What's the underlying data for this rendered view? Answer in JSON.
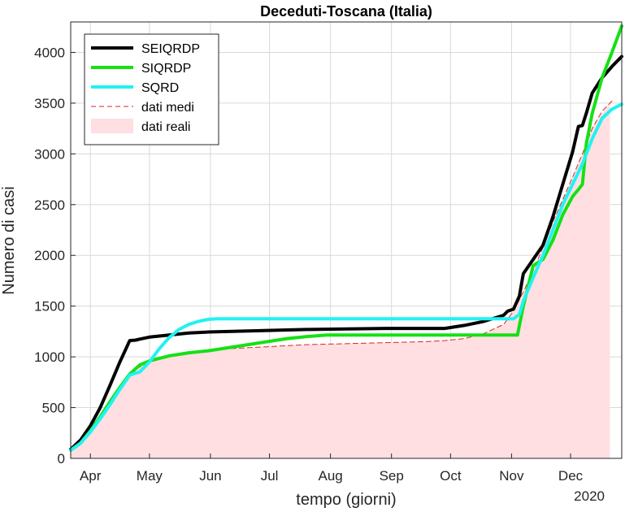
{
  "chart_data": {
    "type": "line",
    "title": "Deceduti-Toscana (Italia)",
    "xlabel": "tempo (giorni)",
    "ylabel": "Numero di casi",
    "year_label": "2020",
    "x_day_range": [
      0,
      280
    ],
    "ylim": [
      0,
      4300
    ],
    "yticks": [
      0,
      500,
      1000,
      1500,
      2000,
      2500,
      3000,
      3500,
      4000
    ],
    "xticks": [
      {
        "day": 10,
        "label": "Apr"
      },
      {
        "day": 40,
        "label": "May"
      },
      {
        "day": 71,
        "label": "Jun"
      },
      {
        "day": 101,
        "label": "Jul"
      },
      {
        "day": 132,
        "label": "Aug"
      },
      {
        "day": 163,
        "label": "Sep"
      },
      {
        "day": 193,
        "label": "Oct"
      },
      {
        "day": 224,
        "label": "Nov"
      },
      {
        "day": 254,
        "label": "Dec"
      }
    ],
    "grid": true,
    "legend_position": "top-left",
    "series": [
      {
        "name": "SEIQRDP",
        "color": "#000000",
        "style": "solid",
        "x": [
          0,
          5,
          10,
          15,
          20,
          25,
          30,
          33,
          35,
          40,
          50,
          60,
          70,
          80,
          100,
          120,
          140,
          160,
          190,
          200,
          210,
          220,
          222,
          225,
          228,
          230,
          235,
          240,
          245,
          250,
          255,
          258,
          260,
          262,
          265,
          270,
          275,
          280
        ],
        "y": [
          90,
          180,
          320,
          500,
          720,
          950,
          1160,
          1165,
          1175,
          1195,
          1215,
          1235,
          1245,
          1250,
          1260,
          1270,
          1275,
          1280,
          1280,
          1310,
          1350,
          1410,
          1450,
          1470,
          1600,
          1820,
          1960,
          2100,
          2380,
          2700,
          3020,
          3270,
          3280,
          3400,
          3600,
          3750,
          3860,
          3960
        ]
      },
      {
        "name": "SIQRDP",
        "color": "#16e016",
        "style": "solid",
        "x": [
          0,
          5,
          10,
          15,
          20,
          25,
          30,
          35,
          40,
          50,
          60,
          70,
          80,
          90,
          100,
          110,
          120,
          130,
          140,
          160,
          180,
          200,
          220,
          227,
          230,
          235,
          240,
          245,
          250,
          255,
          258,
          260,
          262,
          265,
          270,
          275,
          280
        ],
        "y": [
          80,
          150,
          270,
          410,
          560,
          700,
          830,
          920,
          960,
          1010,
          1040,
          1060,
          1090,
          1120,
          1150,
          1180,
          1200,
          1215,
          1215,
          1215,
          1215,
          1215,
          1215,
          1215,
          1500,
          1900,
          1960,
          2150,
          2400,
          2580,
          2650,
          2700,
          3100,
          3400,
          3750,
          4000,
          4260
        ]
      },
      {
        "name": "SQRD",
        "color": "#21f2f2",
        "style": "solid",
        "x": [
          0,
          5,
          10,
          15,
          20,
          25,
          30,
          33,
          35,
          40,
          45,
          50,
          55,
          60,
          65,
          70,
          75,
          80,
          100,
          120,
          140,
          160,
          180,
          200,
          220,
          225,
          228,
          230,
          235,
          240,
          245,
          250,
          255,
          260,
          265,
          270,
          275,
          280
        ],
        "y": [
          80,
          150,
          260,
          390,
          530,
          680,
          820,
          840,
          850,
          950,
          1080,
          1190,
          1270,
          1320,
          1350,
          1370,
          1375,
          1375,
          1375,
          1375,
          1375,
          1375,
          1375,
          1375,
          1375,
          1375,
          1420,
          1550,
          1780,
          2000,
          2250,
          2500,
          2700,
          2900,
          3150,
          3350,
          3440,
          3490
        ]
      },
      {
        "name": "dati medi",
        "color": "#d62728",
        "style": "dashed",
        "x": [
          0,
          5,
          10,
          15,
          20,
          25,
          30,
          35,
          40,
          50,
          60,
          70,
          80,
          100,
          120,
          140,
          160,
          180,
          190,
          200,
          210,
          220,
          225,
          230,
          235,
          240,
          245,
          250,
          255,
          260,
          265,
          270,
          275
        ],
        "y": [
          80,
          150,
          270,
          410,
          560,
          700,
          830,
          900,
          950,
          1000,
          1030,
          1060,
          1080,
          1100,
          1120,
          1130,
          1140,
          1150,
          1160,
          1180,
          1230,
          1320,
          1450,
          1640,
          1850,
          2080,
          2330,
          2550,
          2770,
          3000,
          3250,
          3420,
          3520
        ]
      },
      {
        "name": "dati reali",
        "color": "#ffdfe1",
        "style": "area",
        "x": [
          0,
          5,
          10,
          15,
          20,
          25,
          30,
          35,
          40,
          50,
          60,
          70,
          80,
          100,
          120,
          140,
          160,
          180,
          190,
          200,
          210,
          220,
          225,
          230,
          235,
          240,
          245,
          250,
          255,
          260,
          265,
          270,
          274
        ],
        "y": [
          80,
          150,
          270,
          410,
          560,
          700,
          830,
          900,
          950,
          1000,
          1030,
          1060,
          1080,
          1100,
          1120,
          1130,
          1140,
          1150,
          1160,
          1180,
          1230,
          1320,
          1450,
          1640,
          1850,
          2080,
          2330,
          2550,
          2770,
          3000,
          3250,
          3400,
          3500
        ]
      }
    ]
  }
}
